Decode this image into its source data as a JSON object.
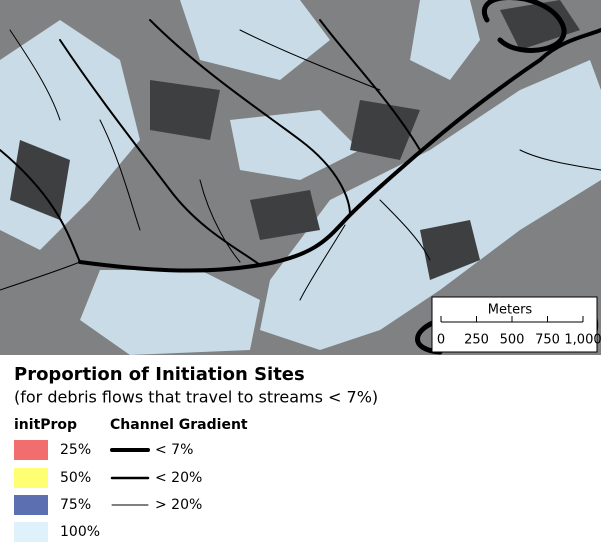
{
  "legend": {
    "title": "Proportion of Initiation Sites",
    "subtitle": "(for debris flows that travel to streams < 7%)",
    "init_prop": {
      "header": "initProp",
      "items": [
        {
          "label": "25%",
          "color": "#f26d6d"
        },
        {
          "label": "50%",
          "color": "#ffff73"
        },
        {
          "label": "75%",
          "color": "#5c6fb0"
        },
        {
          "label": "100%",
          "color": "#dff2fb"
        }
      ]
    },
    "channel_gradient": {
      "header": "Channel Gradient",
      "items": [
        {
          "label": "< 7%"
        },
        {
          "label": "< 20%"
        },
        {
          "label": "> 20%"
        }
      ]
    }
  },
  "scale_bar": {
    "title": "Meters",
    "ticks": [
      0,
      250,
      500,
      750,
      {
        "value": 1000,
        "label": "1,000"
      }
    ]
  }
}
